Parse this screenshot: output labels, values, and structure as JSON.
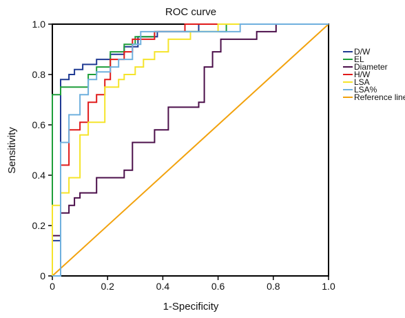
{
  "chart_data": {
    "type": "line",
    "title": "ROC curve",
    "xlabel": "1-Specificity",
    "ylabel": "Sensitivity",
    "xlim": [
      0,
      1
    ],
    "ylim": [
      0,
      1
    ],
    "xticks": [
      "0",
      "0.2",
      "0.4",
      "0.6",
      "0.8",
      "1.0"
    ],
    "yticks": [
      "0",
      "0.2",
      "0.4",
      "0.6",
      "0.8",
      "1.0"
    ],
    "xtick_values": [
      0,
      0.2,
      0.4,
      0.6,
      0.8,
      1.0
    ],
    "ytick_values": [
      0,
      0.2,
      0.4,
      0.6,
      0.8,
      1.0
    ],
    "grid": false,
    "legend_position": "right",
    "series": [
      {
        "name": "D/W",
        "color": "#1f3a93",
        "points": [
          [
            0,
            0
          ],
          [
            0,
            0.14
          ],
          [
            0.03,
            0.14
          ],
          [
            0.03,
            0.78
          ],
          [
            0.06,
            0.78
          ],
          [
            0.06,
            0.8
          ],
          [
            0.08,
            0.8
          ],
          [
            0.08,
            0.82
          ],
          [
            0.11,
            0.82
          ],
          [
            0.11,
            0.84
          ],
          [
            0.16,
            0.84
          ],
          [
            0.16,
            0.86
          ],
          [
            0.21,
            0.86
          ],
          [
            0.21,
            0.88
          ],
          [
            0.26,
            0.88
          ],
          [
            0.26,
            0.91
          ],
          [
            0.31,
            0.91
          ],
          [
            0.31,
            0.95
          ],
          [
            0.38,
            0.95
          ],
          [
            0.38,
            0.97
          ],
          [
            0.53,
            0.97
          ],
          [
            0.53,
            1.0
          ],
          [
            1.0,
            1.0
          ]
        ]
      },
      {
        "name": "EL",
        "color": "#1e9e3a",
        "points": [
          [
            0,
            0
          ],
          [
            0,
            0.72
          ],
          [
            0.03,
            0.72
          ],
          [
            0.03,
            0.75
          ],
          [
            0.13,
            0.75
          ],
          [
            0.13,
            0.8
          ],
          [
            0.16,
            0.8
          ],
          [
            0.16,
            0.83
          ],
          [
            0.21,
            0.83
          ],
          [
            0.21,
            0.89
          ],
          [
            0.26,
            0.89
          ],
          [
            0.26,
            0.92
          ],
          [
            0.3,
            0.92
          ],
          [
            0.3,
            0.95
          ],
          [
            0.37,
            0.95
          ],
          [
            0.37,
            0.97
          ],
          [
            0.63,
            0.97
          ],
          [
            0.63,
            1.0
          ],
          [
            1.0,
            1.0
          ]
        ]
      },
      {
        "name": "Diameter",
        "color": "#4b0f4a",
        "points": [
          [
            0,
            0
          ],
          [
            0,
            0.16
          ],
          [
            0.03,
            0.16
          ],
          [
            0.03,
            0.25
          ],
          [
            0.06,
            0.25
          ],
          [
            0.06,
            0.28
          ],
          [
            0.08,
            0.28
          ],
          [
            0.08,
            0.31
          ],
          [
            0.1,
            0.31
          ],
          [
            0.1,
            0.33
          ],
          [
            0.16,
            0.33
          ],
          [
            0.16,
            0.39
          ],
          [
            0.26,
            0.39
          ],
          [
            0.26,
            0.42
          ],
          [
            0.29,
            0.42
          ],
          [
            0.29,
            0.53
          ],
          [
            0.37,
            0.53
          ],
          [
            0.37,
            0.58
          ],
          [
            0.42,
            0.58
          ],
          [
            0.42,
            0.67
          ],
          [
            0.53,
            0.67
          ],
          [
            0.53,
            0.69
          ],
          [
            0.55,
            0.69
          ],
          [
            0.55,
            0.83
          ],
          [
            0.58,
            0.83
          ],
          [
            0.58,
            0.89
          ],
          [
            0.61,
            0.89
          ],
          [
            0.61,
            0.94
          ],
          [
            0.74,
            0.94
          ],
          [
            0.74,
            0.97
          ],
          [
            0.81,
            0.97
          ],
          [
            0.81,
            1.0
          ],
          [
            1.0,
            1.0
          ]
        ]
      },
      {
        "name": "H/W",
        "color": "#e01a1a",
        "points": [
          [
            0,
            0
          ],
          [
            0.03,
            0
          ],
          [
            0.03,
            0.19
          ],
          [
            0.03,
            0.44
          ],
          [
            0.06,
            0.44
          ],
          [
            0.06,
            0.58
          ],
          [
            0.1,
            0.58
          ],
          [
            0.1,
            0.61
          ],
          [
            0.13,
            0.61
          ],
          [
            0.13,
            0.69
          ],
          [
            0.16,
            0.69
          ],
          [
            0.16,
            0.72
          ],
          [
            0.19,
            0.72
          ],
          [
            0.19,
            0.78
          ],
          [
            0.21,
            0.78
          ],
          [
            0.21,
            0.86
          ],
          [
            0.26,
            0.86
          ],
          [
            0.26,
            0.89
          ],
          [
            0.29,
            0.89
          ],
          [
            0.29,
            0.94
          ],
          [
            0.37,
            0.94
          ],
          [
            0.37,
            0.97
          ],
          [
            0.48,
            0.97
          ],
          [
            0.48,
            1.0
          ],
          [
            1.0,
            1.0
          ]
        ]
      },
      {
        "name": "LSA",
        "color": "#f5e42a",
        "points": [
          [
            0,
            0
          ],
          [
            0,
            0.28
          ],
          [
            0.03,
            0.28
          ],
          [
            0.03,
            0.33
          ],
          [
            0.06,
            0.33
          ],
          [
            0.06,
            0.39
          ],
          [
            0.1,
            0.39
          ],
          [
            0.1,
            0.56
          ],
          [
            0.13,
            0.56
          ],
          [
            0.13,
            0.61
          ],
          [
            0.19,
            0.61
          ],
          [
            0.19,
            0.75
          ],
          [
            0.24,
            0.75
          ],
          [
            0.24,
            0.78
          ],
          [
            0.26,
            0.78
          ],
          [
            0.26,
            0.8
          ],
          [
            0.3,
            0.8
          ],
          [
            0.3,
            0.83
          ],
          [
            0.33,
            0.83
          ],
          [
            0.33,
            0.86
          ],
          [
            0.37,
            0.86
          ],
          [
            0.37,
            0.89
          ],
          [
            0.42,
            0.89
          ],
          [
            0.42,
            0.94
          ],
          [
            0.5,
            0.94
          ],
          [
            0.5,
            0.97
          ],
          [
            0.6,
            0.97
          ],
          [
            0.6,
            1.0
          ],
          [
            1.0,
            1.0
          ]
        ]
      },
      {
        "name": "LSA%",
        "color": "#6fb0de",
        "points": [
          [
            0,
            0
          ],
          [
            0.03,
            0
          ],
          [
            0.03,
            0.53
          ],
          [
            0.06,
            0.53
          ],
          [
            0.06,
            0.64
          ],
          [
            0.1,
            0.64
          ],
          [
            0.1,
            0.72
          ],
          [
            0.13,
            0.72
          ],
          [
            0.13,
            0.78
          ],
          [
            0.16,
            0.78
          ],
          [
            0.16,
            0.81
          ],
          [
            0.21,
            0.81
          ],
          [
            0.21,
            0.83
          ],
          [
            0.24,
            0.83
          ],
          [
            0.24,
            0.86
          ],
          [
            0.29,
            0.86
          ],
          [
            0.29,
            0.92
          ],
          [
            0.32,
            0.92
          ],
          [
            0.32,
            0.97
          ],
          [
            0.68,
            0.97
          ],
          [
            0.68,
            1.0
          ],
          [
            1.0,
            1.0
          ]
        ]
      },
      {
        "name": "Reference line",
        "color": "#f2a20d",
        "points": [
          [
            0,
            0
          ],
          [
            1,
            1
          ]
        ]
      }
    ]
  }
}
